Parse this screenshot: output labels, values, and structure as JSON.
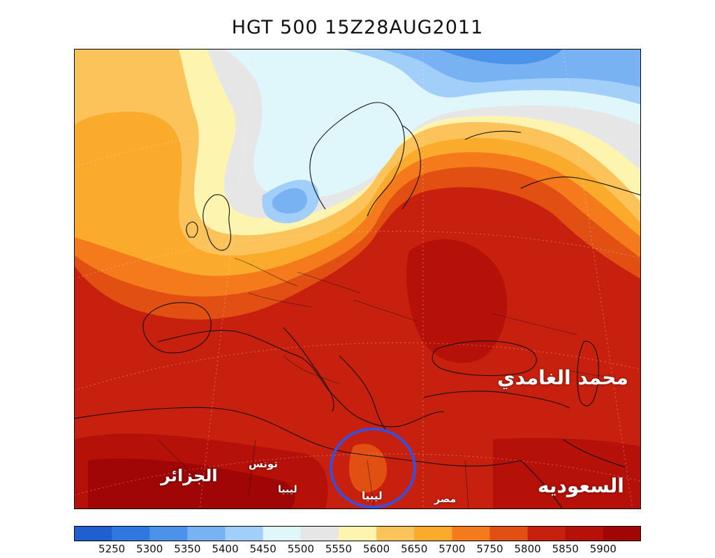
{
  "title": "HGT 500  15Z28AUG2011",
  "colorbar": {
    "colors": [
      "#1f5fd0",
      "#2f78e0",
      "#4a92ea",
      "#78b2f2",
      "#a2cffa",
      "#dff7fb",
      "#e6e6e6",
      "#fdf4b0",
      "#fcc35b",
      "#fbab2c",
      "#f57a1c",
      "#e14f12",
      "#c8200e",
      "#b51108",
      "#a00606"
    ],
    "ticks": [
      "5250",
      "5300",
      "5350",
      "5400",
      "5450",
      "5500",
      "5550",
      "5600",
      "5650",
      "5700",
      "5750",
      "5800",
      "5850",
      "5900"
    ]
  },
  "labels": {
    "author": "محمد الغامدي",
    "saudi": "السعوديه",
    "algeria": "الجزائر",
    "tunisia": "تونس",
    "libya1": "ليبيا",
    "libya2": "ليبيا",
    "egypt": "مصر"
  },
  "highlight": {
    "color": "#3a4fd8"
  }
}
